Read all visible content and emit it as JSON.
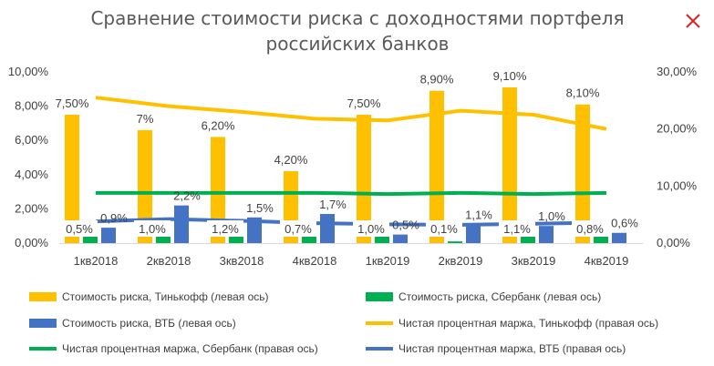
{
  "chart_data": {
    "type": "bar",
    "title_lines": [
      "Сравнение стоимости риска с доходностями портфеля",
      "российских банков"
    ],
    "close_icon": "close-icon",
    "categories": [
      "1кв2018",
      "2кв2018",
      "3кв2018",
      "4кв2018",
      "1кв2019",
      "2кв2019",
      "3кв2019",
      "4кв2019"
    ],
    "left_axis": {
      "min": 0,
      "max": 10,
      "ticks": [
        "0,00%",
        "2,00%",
        "4,00%",
        "6,00%",
        "8,00%",
        "10,00%"
      ]
    },
    "right_axis": {
      "min": 0,
      "max": 30,
      "ticks": [
        "0,00%",
        "10,00%",
        "20,00%",
        "30,00%"
      ]
    },
    "bar_series": [
      {
        "name": "Стоимость риска, Тинькофф (левая ось)",
        "color": "#FFC000",
        "values": [
          7.5,
          6.6,
          6.2,
          4.2,
          7.5,
          8.9,
          9.1,
          8.1
        ],
        "labels": [
          "7,50%",
          "7%",
          "6,20%",
          "4,20%",
          "7,50%",
          "8,90%",
          "9,10%",
          "8,10%"
        ]
      },
      {
        "name": "Стоимость риска, Сбербанк (левая ось)",
        "color": "#00B050",
        "values": [
          0.5,
          1.0,
          1.2,
          0.7,
          1.0,
          0.1,
          1.1,
          0.8
        ],
        "labels": [
          "0,5%",
          "1,0%",
          "1,2%",
          "0,7%",
          "1,0%",
          "0,1%",
          "1,1%",
          "0,8%"
        ]
      },
      {
        "name": "Стоимость риска, ВТБ (левая ось)",
        "color": "#4472C4",
        "values": [
          0.9,
          2.2,
          1.5,
          1.7,
          0.5,
          1.1,
          1.0,
          0.6
        ],
        "labels": [
          "0,9%",
          "2,2%",
          "1,5%",
          "1,7%",
          "0,5%",
          "1,1%",
          "1,0%",
          "0,6%"
        ]
      }
    ],
    "line_series": [
      {
        "name": "Чистая процентная маржа, Тинькофф (правая ось)",
        "color": "#FFC000",
        "values": [
          25.5,
          24.0,
          23.0,
          21.8,
          21.5,
          23.2,
          22.5,
          20.0
        ]
      },
      {
        "name": "Чистая процентная маржа, Сбербанк (правая ось)",
        "color": "#00B050",
        "values": [
          8.8,
          8.8,
          8.8,
          8.8,
          8.6,
          8.8,
          8.6,
          8.8
        ]
      },
      {
        "name": "Чистая процентная маржа, ВТБ (правая ось)",
        "color": "#4472C4",
        "values": [
          3.8,
          4.2,
          3.9,
          3.5,
          3.3,
          3.2,
          3.4,
          3.6
        ]
      }
    ],
    "legend_position": "bottom"
  }
}
